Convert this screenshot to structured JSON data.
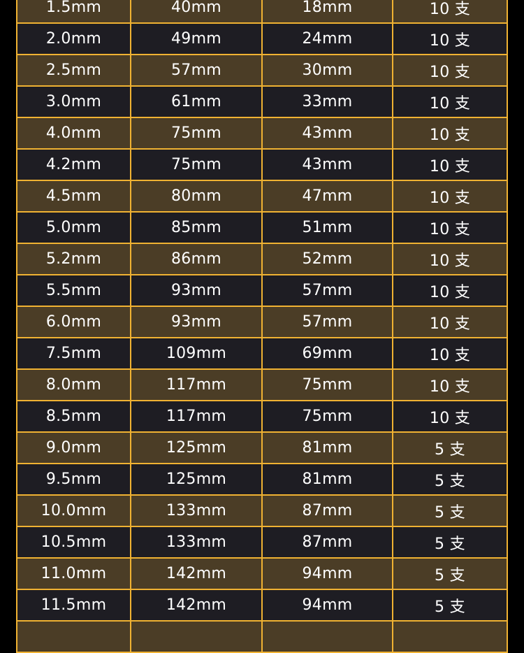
{
  "colors": {
    "border": "#f0b232",
    "row_brown": "#4b3d26",
    "row_dark": "#1e1d23",
    "text": "#ffffff"
  },
  "rows": [
    [
      "1.5mm",
      "40mm",
      "18mm",
      "10 支"
    ],
    [
      "2.0mm",
      "49mm",
      "24mm",
      "10 支"
    ],
    [
      "2.5mm",
      "57mm",
      "30mm",
      "10 支"
    ],
    [
      "3.0mm",
      "61mm",
      "33mm",
      "10 支"
    ],
    [
      "4.0mm",
      "75mm",
      "43mm",
      "10 支"
    ],
    [
      "4.2mm",
      "75mm",
      "43mm",
      "10 支"
    ],
    [
      "4.5mm",
      "80mm",
      "47mm",
      "10 支"
    ],
    [
      "5.0mm",
      "85mm",
      "51mm",
      "10 支"
    ],
    [
      "5.2mm",
      "86mm",
      "52mm",
      "10 支"
    ],
    [
      "5.5mm",
      "93mm",
      "57mm",
      "10 支"
    ],
    [
      "6.0mm",
      "93mm",
      "57mm",
      "10 支"
    ],
    [
      "7.5mm",
      "109mm",
      "69mm",
      "10 支"
    ],
    [
      "8.0mm",
      "117mm",
      "75mm",
      "10 支"
    ],
    [
      "8.5mm",
      "117mm",
      "75mm",
      "10 支"
    ],
    [
      "9.0mm",
      "125mm",
      "81mm",
      "5 支"
    ],
    [
      "9.5mm",
      "125mm",
      "81mm",
      "5 支"
    ],
    [
      "10.0mm",
      "133mm",
      "87mm",
      "5 支"
    ],
    [
      "10.5mm",
      "133mm",
      "87mm",
      "5 支"
    ],
    [
      "11.0mm",
      "142mm",
      "94mm",
      "5 支"
    ],
    [
      "11.5mm",
      "142mm",
      "94mm",
      "5 支"
    ],
    [
      "",
      "",
      "",
      ""
    ]
  ]
}
